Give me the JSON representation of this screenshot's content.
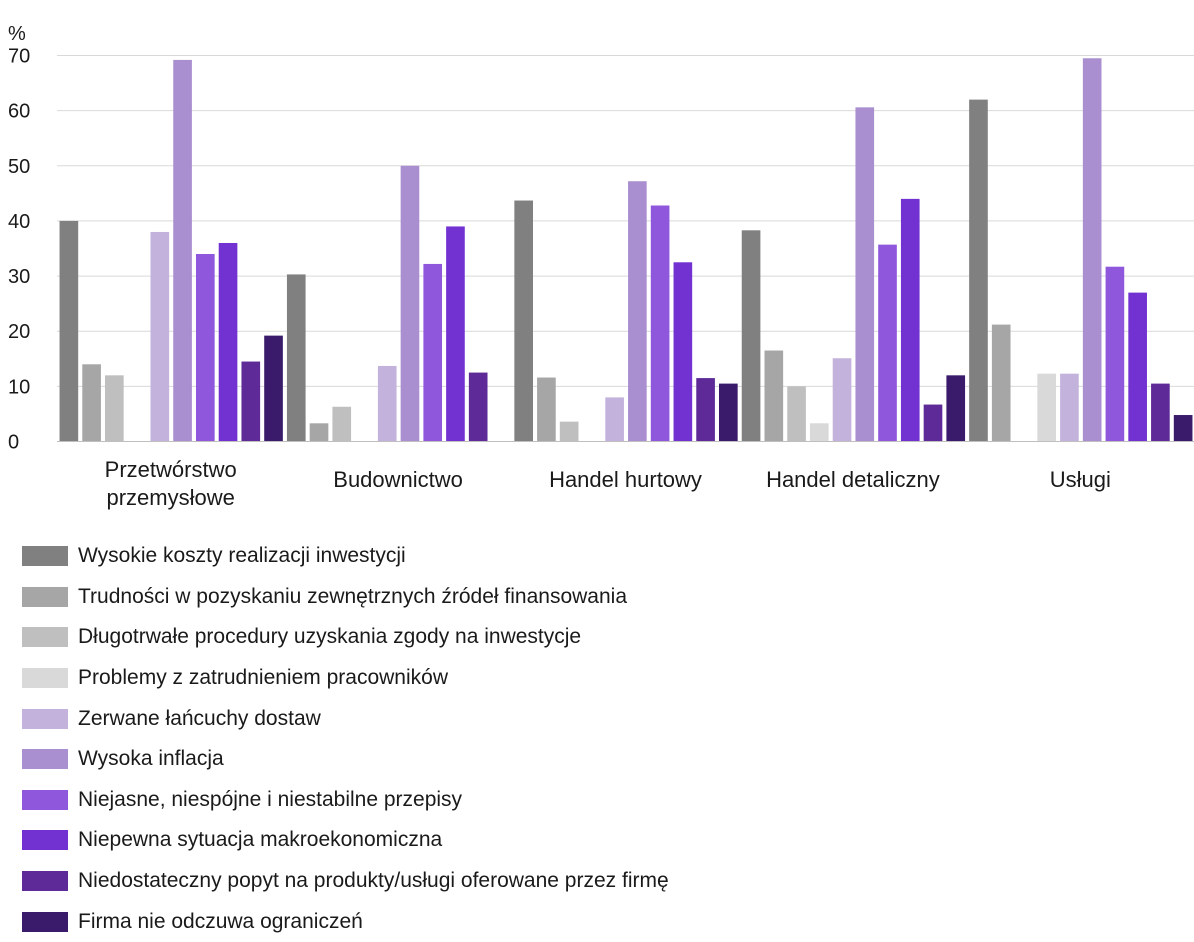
{
  "chart_data": {
    "type": "bar",
    "unit_label": "%",
    "ylim": [
      0,
      70
    ],
    "yticks": [
      0,
      10,
      20,
      30,
      40,
      50,
      60,
      70
    ],
    "grid": true,
    "legend_position": "bottom",
    "categories": [
      [
        "Przetwórstwo",
        "przemysłowe"
      ],
      [
        "Budownictwo"
      ],
      [
        "Handel hurtowy"
      ],
      [
        "Handel detaliczny"
      ],
      [
        "Usługi"
      ]
    ],
    "series": [
      {
        "name": "Wysokie koszty realizacji inwestycji",
        "color": "#808080",
        "values": [
          40.0,
          30.3,
          43.7,
          38.3,
          62.0
        ]
      },
      {
        "name": "Trudności w pozyskaniu zewnętrznych źródeł finansowania",
        "color": "#a6a6a6",
        "values": [
          14.0,
          3.3,
          11.6,
          16.5,
          21.2
        ]
      },
      {
        "name": "Długotrwałe procedury uzyskania zgody na inwestycje",
        "color": "#bfbfbf",
        "values": [
          12.0,
          6.3,
          3.6,
          10.0,
          0
        ]
      },
      {
        "name": "Problemy z zatrudnieniem pracowników",
        "color": "#d9d9d9",
        "values": [
          0,
          0,
          0,
          3.3,
          12.3
        ]
      },
      {
        "name": "Zerwane łańcuchy dostaw",
        "color": "#c3b3dc",
        "values": [
          38.0,
          13.7,
          8.0,
          15.1,
          12.3
        ]
      },
      {
        "name": "Wysoka inflacja",
        "color": "#a98fd0",
        "values": [
          69.2,
          50.0,
          47.2,
          60.6,
          69.5
        ]
      },
      {
        "name": "Niejasne, niespójne i niestabilne przepisy",
        "color": "#8f57dc",
        "values": [
          34.0,
          32.2,
          42.8,
          35.7,
          31.7
        ]
      },
      {
        "name": "Niepewna sytuacja makroekonomiczna",
        "color": "#7232d1",
        "values": [
          36.0,
          39.0,
          32.5,
          44.0,
          27.0
        ]
      },
      {
        "name": "Niedostateczny popyt na produkty/usługi oferowane przez firmę",
        "color": "#5d2a98",
        "values": [
          14.5,
          12.5,
          11.5,
          6.7,
          10.5
        ]
      },
      {
        "name": "Firma nie odczuwa ograniczeń",
        "color": "#3a1a6a",
        "values": [
          19.2,
          0,
          10.5,
          12.0,
          4.8
        ]
      }
    ]
  }
}
